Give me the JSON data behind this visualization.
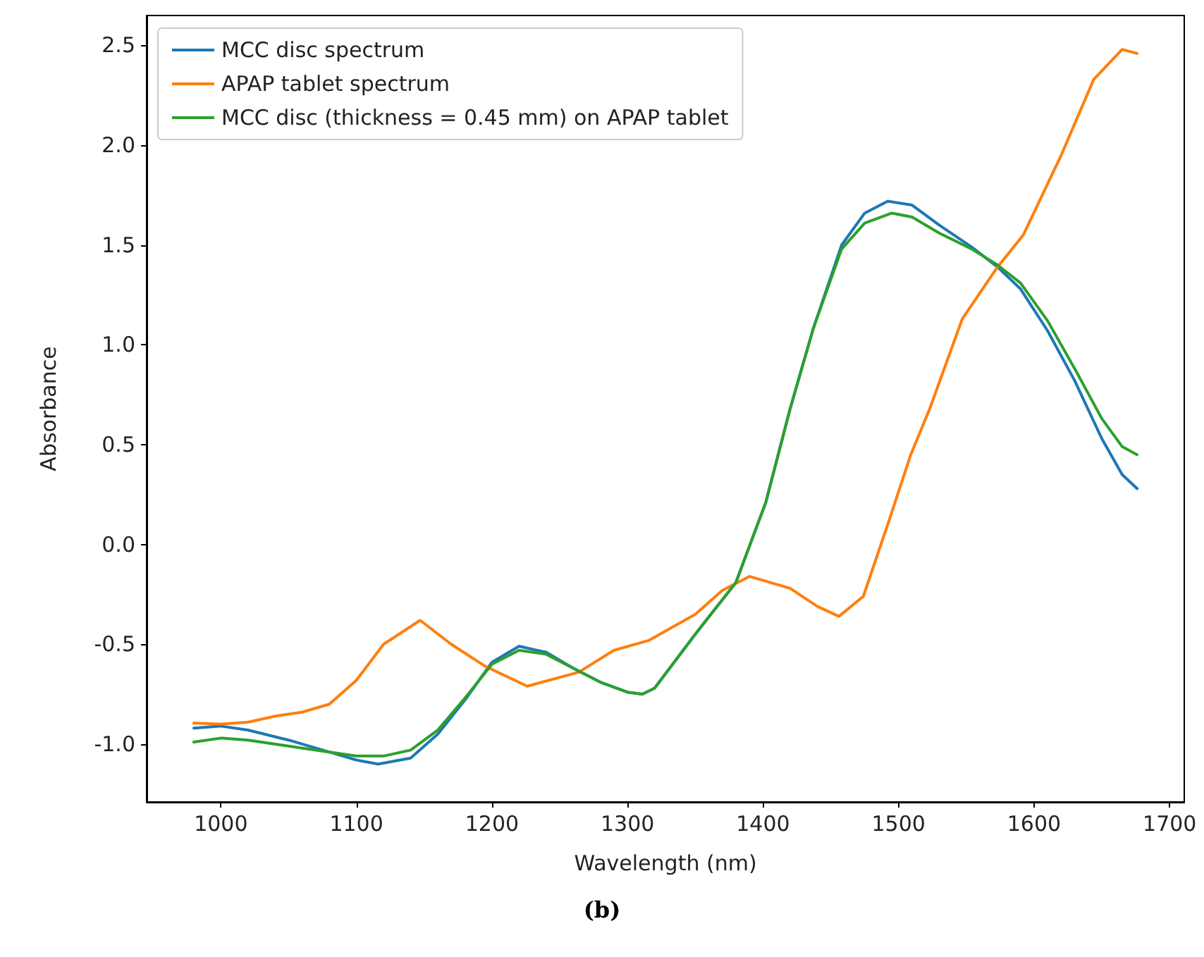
{
  "chart_data": {
    "type": "line",
    "xlabel": "Wavelength (nm)",
    "ylabel": "Absorbance",
    "annotations": [
      "(b)"
    ],
    "xlim": [
      945.2,
      1710.8
    ],
    "xticks": [
      1000,
      1100,
      1200,
      1300,
      1400,
      1500,
      1600,
      1700
    ],
    "ylim": [
      -1.29,
      2.65
    ],
    "yticks": [
      {
        "value": -1,
        "label": "-1.0"
      },
      {
        "value": -0.5,
        "label": "-0.5"
      },
      {
        "value": 0,
        "label": "0.0"
      },
      {
        "value": 0.5,
        "label": "0.5"
      },
      {
        "value": 1,
        "label": "1.0"
      },
      {
        "value": 1.5,
        "label": "1.5"
      },
      {
        "value": 2,
        "label": "2.0"
      },
      {
        "value": 2.5,
        "label": "2.5"
      }
    ],
    "grid": false,
    "legend": "top left",
    "marker": "none",
    "line_style": "solid",
    "series": [
      {
        "name": "MCC disc spectrum",
        "color": "#1f77b4",
        "x": [
          980,
          1000,
          1020,
          1050,
          1080,
          1100,
          1116,
          1140,
          1160,
          1180,
          1200,
          1220,
          1240,
          1260,
          1280,
          1300,
          1311,
          1320,
          1350,
          1380,
          1402,
          1420,
          1437,
          1458,
          1475,
          1492,
          1510,
          1530,
          1554,
          1573,
          1590,
          1610,
          1630,
          1650,
          1665,
          1676
        ],
        "values": [
          -0.92,
          -0.91,
          -0.93,
          -0.98,
          -1.04,
          -1.08,
          -1.1,
          -1.07,
          -0.95,
          -0.78,
          -0.59,
          -0.51,
          -0.54,
          -0.62,
          -0.69,
          -0.74,
          -0.75,
          -0.72,
          -0.45,
          -0.19,
          0.21,
          0.68,
          1.08,
          1.5,
          1.66,
          1.72,
          1.7,
          1.6,
          1.49,
          1.39,
          1.28,
          1.07,
          0.82,
          0.53,
          0.35,
          0.28
        ]
      },
      {
        "name": "APAP tablet spectrum",
        "color": "#ff7f0e",
        "x": [
          980,
          1000,
          1020,
          1040,
          1060,
          1080,
          1100,
          1120,
          1147,
          1170,
          1195,
          1226,
          1264,
          1290,
          1316,
          1350,
          1370,
          1390,
          1420,
          1440,
          1456,
          1474,
          1492,
          1509,
          1523,
          1547,
          1573,
          1592,
          1620,
          1644,
          1665,
          1676
        ],
        "values": [
          -0.895,
          -0.9,
          -0.89,
          -0.86,
          -0.84,
          -0.8,
          -0.68,
          -0.5,
          -0.38,
          -0.5,
          -0.61,
          -0.71,
          -0.64,
          -0.53,
          -0.48,
          -0.35,
          -0.23,
          -0.16,
          -0.22,
          -0.31,
          -0.36,
          -0.26,
          0.1,
          0.45,
          0.68,
          1.13,
          1.39,
          1.55,
          1.95,
          2.33,
          2.48,
          2.46
        ]
      },
      {
        "name": "MCC disc (thickness = 0.45 mm) on APAP tablet",
        "color": "#2ca02c",
        "x": [
          980,
          1000,
          1020,
          1050,
          1080,
          1100,
          1120,
          1140,
          1160,
          1180,
          1200,
          1220,
          1240,
          1260,
          1280,
          1300,
          1311,
          1320,
          1350,
          1380,
          1402,
          1420,
          1437,
          1458,
          1475,
          1495,
          1510,
          1530,
          1554,
          1573,
          1590,
          1610,
          1630,
          1650,
          1665,
          1676
        ],
        "values": [
          -0.99,
          -0.97,
          -0.98,
          -1.01,
          -1.04,
          -1.06,
          -1.06,
          -1.03,
          -0.93,
          -0.77,
          -0.6,
          -0.53,
          -0.55,
          -0.62,
          -0.69,
          -0.74,
          -0.75,
          -0.72,
          -0.45,
          -0.19,
          0.21,
          0.68,
          1.08,
          1.48,
          1.61,
          1.66,
          1.64,
          1.56,
          1.48,
          1.4,
          1.31,
          1.12,
          0.88,
          0.63,
          0.49,
          0.45
        ]
      }
    ]
  }
}
